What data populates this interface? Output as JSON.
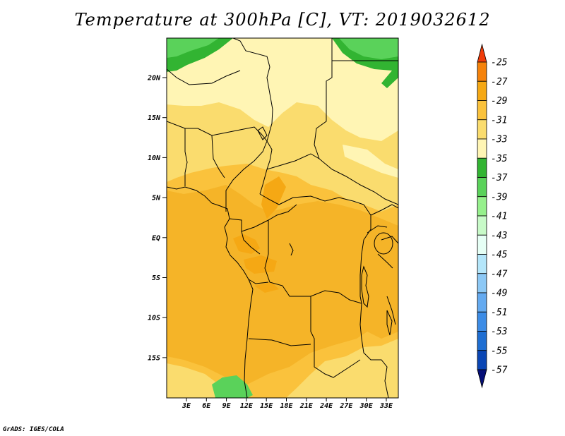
{
  "title": "Temperature at 300hPa [C], VT: 2019032612",
  "credit": "GrADS: IGES/COLA",
  "map": {
    "variable": "Temperature",
    "level": "300hPa",
    "units": "C",
    "valid_time": "2019032612",
    "lat_ticks": [
      "20N",
      "15N",
      "10N",
      "5N",
      "EQ",
      "5S",
      "10S",
      "15S"
    ],
    "lon_ticks": [
      "3E",
      "6E",
      "9E",
      "12E",
      "15E",
      "18E",
      "21E",
      "24E",
      "27E",
      "30E",
      "33E"
    ]
  },
  "colorbar": {
    "levels": [
      "-25",
      "-27",
      "-29",
      "-31",
      "-33",
      "-35",
      "-37",
      "-39",
      "-41",
      "-43",
      "-45",
      "-47",
      "-49",
      "-51",
      "-53",
      "-55",
      "-57"
    ],
    "colors": [
      "#f03c0a",
      "#f5820a",
      "#f5a814",
      "#fac23c",
      "#fadc6e",
      "#fff5b4",
      "#32b432",
      "#5ad25a",
      "#96f08c",
      "#c8fac8",
      "#e6fff5",
      "#b4e6fa",
      "#8cc8f5",
      "#64aaf0",
      "#3c8ce6",
      "#1e6ed2",
      "#0a46b4",
      "#050f78"
    ]
  }
}
